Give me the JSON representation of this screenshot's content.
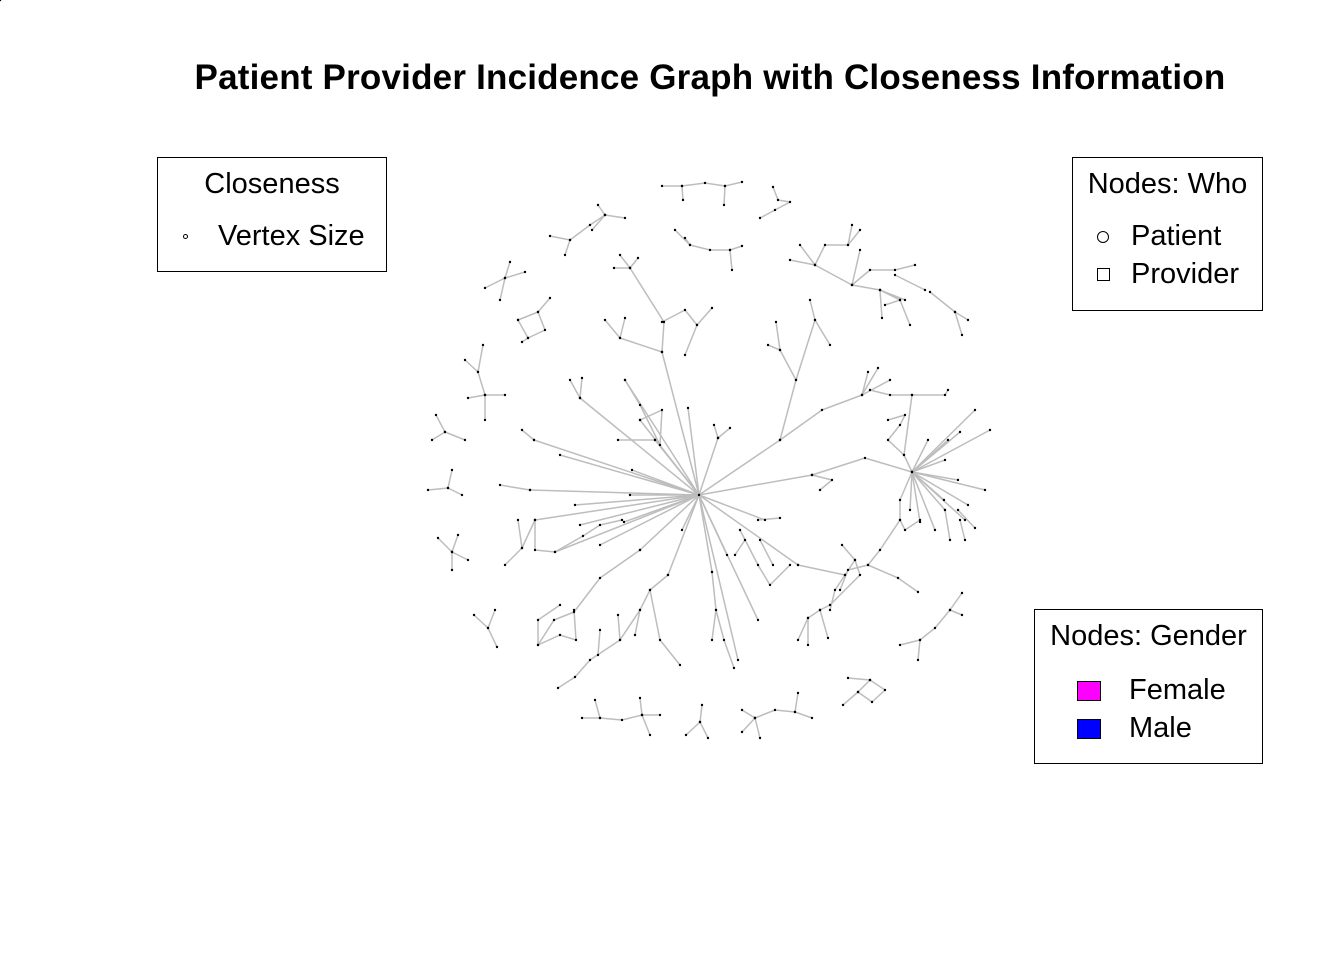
{
  "title": "Patient Provider Incidence Graph with Closeness Information",
  "legends": {
    "closeness": {
      "title": "Closeness",
      "items": [
        {
          "label": "Vertex Size",
          "symbol": "small-circle"
        }
      ]
    },
    "who": {
      "title": "Nodes: Who",
      "items": [
        {
          "label": "Patient",
          "symbol": "circle"
        },
        {
          "label": "Provider",
          "symbol": "square"
        }
      ]
    },
    "gender": {
      "title": "Nodes: Gender",
      "items": [
        {
          "label": "Female",
          "color": "#ff00ff"
        },
        {
          "label": "Male",
          "color": "#0000ff"
        }
      ]
    }
  },
  "colors": {
    "edge": "#bdbdbd",
    "vertex": "#000000"
  }
}
